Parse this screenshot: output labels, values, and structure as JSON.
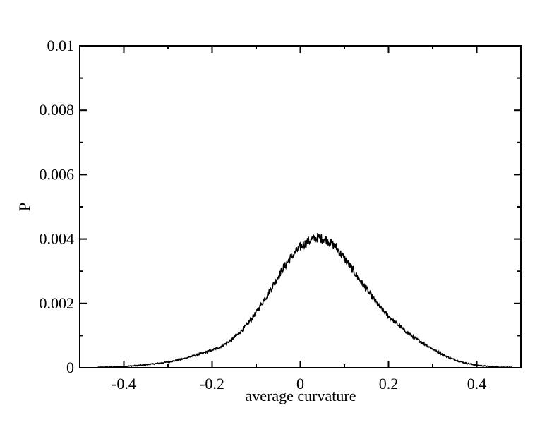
{
  "chart_data": {
    "type": "line",
    "title": "",
    "xlabel": "average curvature",
    "ylabel": "P",
    "xlim": [
      -0.5,
      0.5
    ],
    "ylim": [
      0,
      0.01
    ],
    "x_ticks": [
      -0.4,
      -0.2,
      0,
      0.2,
      0.4
    ],
    "x_tick_labels": [
      "-0.4",
      "-0.2",
      "0",
      "0.2",
      "0.4"
    ],
    "y_ticks": [
      0,
      0.002,
      0.004,
      0.006,
      0.008,
      0.01
    ],
    "y_tick_labels": [
      "0",
      "0.002",
      "0.004",
      "0.006",
      "0.008",
      "0.01"
    ],
    "grid": false,
    "legend": "none",
    "line_color": "#000000",
    "series": [
      {
        "x": [
          -0.46,
          -0.44,
          -0.42,
          -0.4,
          -0.38,
          -0.36,
          -0.34,
          -0.32,
          -0.3,
          -0.28,
          -0.26,
          -0.24,
          -0.22,
          -0.2,
          -0.18,
          -0.16,
          -0.14,
          -0.12,
          -0.1,
          -0.08,
          -0.06,
          -0.04,
          -0.02,
          0.0,
          0.02,
          0.04,
          0.06,
          0.08,
          0.1,
          0.12,
          0.14,
          0.16,
          0.18,
          0.2,
          0.22,
          0.24,
          0.26,
          0.28,
          0.3,
          0.32,
          0.34,
          0.36,
          0.38,
          0.4,
          0.42,
          0.44,
          0.46,
          0.48
        ],
        "values": [
          1e-05,
          2e-05,
          3e-05,
          4e-05,
          6e-05,
          8e-05,
          0.00011,
          0.00014,
          0.00018,
          0.00023,
          0.0003,
          0.00038,
          0.00046,
          0.00055,
          0.00066,
          0.00083,
          0.00106,
          0.00135,
          0.00172,
          0.00215,
          0.0026,
          0.00307,
          0.00345,
          0.00375,
          0.00395,
          0.00405,
          0.00398,
          0.00375,
          0.0034,
          0.00302,
          0.00262,
          0.00225,
          0.00188,
          0.0016,
          0.00135,
          0.00112,
          0.00092,
          0.00075,
          0.00058,
          0.00043,
          0.0003,
          0.0002,
          0.00013,
          8e-05,
          5e-05,
          3e-05,
          2e-05,
          1e-05
        ]
      }
    ]
  }
}
